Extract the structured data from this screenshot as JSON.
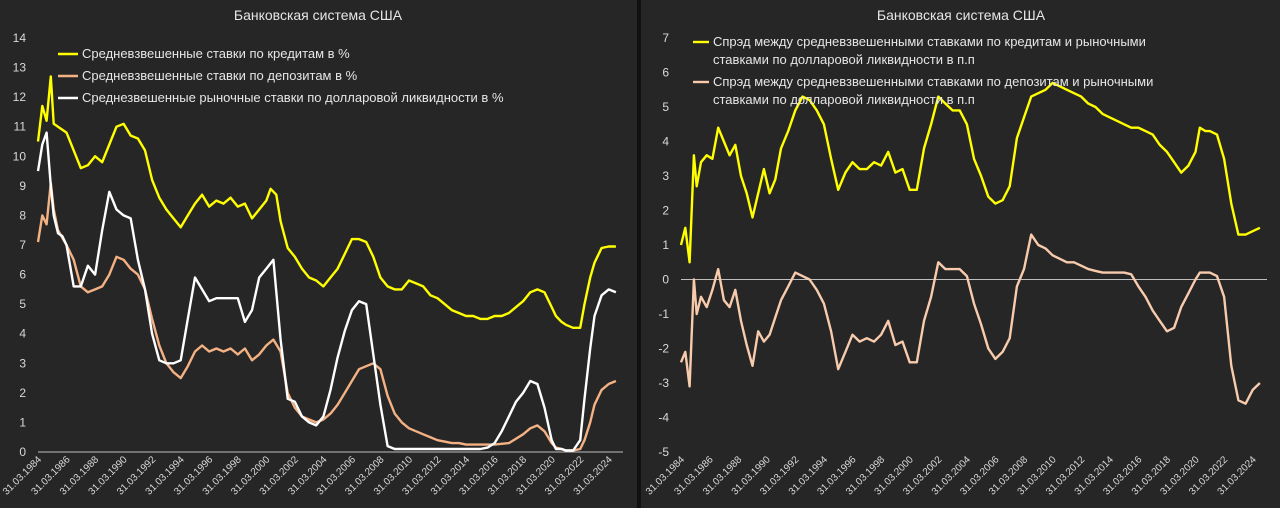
{
  "chart_data": [
    {
      "type": "line",
      "title": "Банковская система США",
      "ylim": [
        0,
        14
      ],
      "yticks": [
        0,
        1,
        2,
        3,
        4,
        5,
        6,
        7,
        8,
        9,
        10,
        11,
        12,
        13,
        14
      ],
      "xlim": [
        1984,
        2025
      ],
      "xtick_labels": [
        "31.03.1984",
        "31.03.1986",
        "31.03.1988",
        "31.03.1990",
        "31.03.1992",
        "31.03.1994",
        "31.03.1996",
        "31.03.1998",
        "31.03.2000",
        "31.03.2002",
        "31.03.2004",
        "31.03.2006",
        "31.03.2008",
        "31.03.2010",
        "31.03.2012",
        "31.03.2014",
        "31.03.2016",
        "31.03.2018",
        "31.03.2020",
        "31.03.2022",
        "31.03.2024"
      ],
      "xtick_years": [
        1984,
        1986,
        1988,
        1990,
        1992,
        1994,
        1996,
        1998,
        2000,
        2002,
        2004,
        2006,
        2008,
        2010,
        2012,
        2014,
        2016,
        2018,
        2020,
        2022,
        2024
      ],
      "legend": "top-left",
      "series": [
        {
          "name": "Средневзвешенные ставки по кредитам в %",
          "color": "#ffff00",
          "x": [
            1984,
            1984.3,
            1984.6,
            1984.9,
            1985.1,
            1985.4,
            1986,
            1986.5,
            1987,
            1987.5,
            1988,
            1988.5,
            1989,
            1989.5,
            1990,
            1990.5,
            1991,
            1991.5,
            1992,
            1992.5,
            1993,
            1993.5,
            1994,
            1994.5,
            1995,
            1995.5,
            1996,
            1996.5,
            1997,
            1997.5,
            1998,
            1998.5,
            1999,
            1999.5,
            2000,
            2000.3,
            2000.7,
            2001,
            2001.5,
            2002,
            2002.5,
            2003,
            2003.5,
            2004,
            2004.5,
            2005,
            2005.5,
            2006,
            2006.5,
            2007,
            2007.5,
            2008,
            2008.5,
            2009,
            2009.5,
            2010,
            2010.5,
            2011,
            2011.5,
            2012,
            2012.5,
            2013,
            2013.5,
            2014,
            2014.5,
            2015,
            2015.5,
            2016,
            2016.5,
            2017,
            2017.5,
            2018,
            2018.5,
            2019,
            2019.5,
            2020,
            2020.3,
            2020.7,
            2021,
            2021.5,
            2022,
            2022.3,
            2022.7,
            2023,
            2023.5,
            2024,
            2024.5
          ],
          "y": [
            10.5,
            11.7,
            11.2,
            12.7,
            11.1,
            11.0,
            10.8,
            10.2,
            9.6,
            9.7,
            10.0,
            9.8,
            10.4,
            11.0,
            11.1,
            10.7,
            10.6,
            10.2,
            9.2,
            8.6,
            8.2,
            7.9,
            7.6,
            8.0,
            8.4,
            8.7,
            8.3,
            8.5,
            8.4,
            8.6,
            8.3,
            8.4,
            7.9,
            8.2,
            8.5,
            8.9,
            8.7,
            7.8,
            6.9,
            6.6,
            6.2,
            5.9,
            5.8,
            5.6,
            5.9,
            6.2,
            6.7,
            7.2,
            7.2,
            7.1,
            6.6,
            5.9,
            5.6,
            5.5,
            5.5,
            5.8,
            5.7,
            5.6,
            5.3,
            5.2,
            5.0,
            4.8,
            4.7,
            4.6,
            4.6,
            4.5,
            4.5,
            4.6,
            4.6,
            4.7,
            4.9,
            5.1,
            5.4,
            5.5,
            5.4,
            4.9,
            4.6,
            4.4,
            4.3,
            4.2,
            4.2,
            5.0,
            5.9,
            6.4,
            6.9,
            6.95,
            6.95
          ]
        },
        {
          "name": "Средневзвешенные ставки по депозитам в %",
          "color": "#f4b183",
          "x": [
            1984,
            1984.3,
            1984.6,
            1984.9,
            1985.1,
            1985.4,
            1986,
            1986.5,
            1987,
            1987.5,
            1988,
            1988.5,
            1989,
            1989.5,
            1990,
            1990.5,
            1991,
            1991.5,
            1992,
            1992.5,
            1993,
            1993.5,
            1994,
            1994.5,
            1995,
            1995.5,
            1996,
            1996.5,
            1997,
            1997.5,
            1998,
            1998.5,
            1999,
            1999.5,
            2000,
            2000.5,
            2001,
            2001.5,
            2002,
            2002.5,
            2003,
            2003.5,
            2004,
            2004.5,
            2005,
            2005.5,
            2006,
            2006.5,
            2007,
            2007.5,
            2008,
            2008.5,
            2009,
            2009.5,
            2010,
            2010.5,
            2011,
            2011.5,
            2012,
            2012.5,
            2013,
            2013.5,
            2014,
            2015,
            2016,
            2017,
            2018,
            2018.5,
            2019,
            2019.5,
            2020,
            2020.3,
            2020.7,
            2021,
            2021.5,
            2022,
            2022.3,
            2022.7,
            2023,
            2023.5,
            2024,
            2024.5
          ],
          "y": [
            7.1,
            8.0,
            7.7,
            9.1,
            8.2,
            7.5,
            7.0,
            6.5,
            5.6,
            5.4,
            5.5,
            5.6,
            6.0,
            6.6,
            6.5,
            6.2,
            6.0,
            5.5,
            4.5,
            3.6,
            3.0,
            2.7,
            2.5,
            2.9,
            3.4,
            3.6,
            3.4,
            3.5,
            3.4,
            3.5,
            3.3,
            3.5,
            3.1,
            3.3,
            3.6,
            3.8,
            3.4,
            2.0,
            1.5,
            1.2,
            1.1,
            1.0,
            1.1,
            1.3,
            1.6,
            2.0,
            2.4,
            2.8,
            2.9,
            3.0,
            2.8,
            1.9,
            1.3,
            1.0,
            0.8,
            0.7,
            0.6,
            0.5,
            0.4,
            0.35,
            0.3,
            0.3,
            0.25,
            0.25,
            0.25,
            0.3,
            0.6,
            0.8,
            0.9,
            0.7,
            0.3,
            0.15,
            0.1,
            0.05,
            0.05,
            0.1,
            0.4,
            1.0,
            1.6,
            2.1,
            2.3,
            2.4
          ]
        },
        {
          "name": "Среднезвешенные рыночные ставки по долларовой ликвидности в %",
          "color": "#ffffff",
          "x": [
            1984,
            1984.3,
            1984.6,
            1984.9,
            1985.1,
            1985.4,
            1985.7,
            1986,
            1986.5,
            1987,
            1987.5,
            1988,
            1988.5,
            1989,
            1989.5,
            1990,
            1990.5,
            1991,
            1991.5,
            1992,
            1992.5,
            1993,
            1993.5,
            1994,
            1994.5,
            1995,
            1995.5,
            1996,
            1996.5,
            1997,
            1997.5,
            1998,
            1998.5,
            1999,
            1999.5,
            2000,
            2000.5,
            2001,
            2001.5,
            2002,
            2002.5,
            2003,
            2003.5,
            2004,
            2004.5,
            2005,
            2005.5,
            2006,
            2006.5,
            2007,
            2007.5,
            2008,
            2008.5,
            2009,
            2009.5,
            2010,
            2011,
            2012,
            2013,
            2014,
            2015,
            2015.5,
            2016,
            2016.5,
            2017,
            2017.5,
            2018,
            2018.5,
            2019,
            2019.5,
            2020,
            2020.3,
            2020.7,
            2021,
            2021.5,
            2022,
            2022.3,
            2022.7,
            2023,
            2023.5,
            2024,
            2024.5
          ],
          "y": [
            9.5,
            10.4,
            10.8,
            9.0,
            8.0,
            7.4,
            7.3,
            7.0,
            5.6,
            5.6,
            6.3,
            6.0,
            7.5,
            8.8,
            8.2,
            8.0,
            7.9,
            6.5,
            5.5,
            4.0,
            3.1,
            3.0,
            3.0,
            3.1,
            4.5,
            5.9,
            5.5,
            5.1,
            5.2,
            5.2,
            5.2,
            5.2,
            4.4,
            4.8,
            5.9,
            6.2,
            6.5,
            3.8,
            1.8,
            1.7,
            1.2,
            1.0,
            0.9,
            1.2,
            2.1,
            3.2,
            4.1,
            4.8,
            5.1,
            5.0,
            3.3,
            1.6,
            0.2,
            0.1,
            0.1,
            0.1,
            0.1,
            0.1,
            0.1,
            0.1,
            0.1,
            0.15,
            0.3,
            0.7,
            1.2,
            1.7,
            2.0,
            2.4,
            2.3,
            1.5,
            0.4,
            0.1,
            0.1,
            0.05,
            0.05,
            0.4,
            1.8,
            3.5,
            4.6,
            5.3,
            5.5,
            5.4
          ]
        }
      ]
    },
    {
      "type": "line",
      "title": "Банковская система США",
      "ylim": [
        -5,
        7
      ],
      "yticks": [
        -5,
        -4,
        -3,
        -2,
        -1,
        0,
        1,
        2,
        3,
        4,
        5,
        6,
        7
      ],
      "xlim": [
        1984,
        2025
      ],
      "xtick_labels": [
        "31.03.1984",
        "31.03.1986",
        "31.03.1988",
        "31.03.1990",
        "31.03.1992",
        "31.03.1994",
        "31.03.1996",
        "31.03.1998",
        "31.03.2000",
        "31.03.2002",
        "31.03.2004",
        "31.03.2006",
        "31.03.2008",
        "31.03.2010",
        "31.03.2012",
        "31.03.2014",
        "31.03.2016",
        "31.03.2018",
        "31.03.2020",
        "31.03.2022",
        "31.03.2024"
      ],
      "xtick_years": [
        1984,
        1986,
        1988,
        1990,
        1992,
        1994,
        1996,
        1998,
        2000,
        2002,
        2004,
        2006,
        2008,
        2010,
        2012,
        2014,
        2016,
        2018,
        2020,
        2022,
        2024
      ],
      "legend": "top-left",
      "series": [
        {
          "name": "Спрэд между средневзвешенными ставками по кредитам и рыночными ставками по долларовой ликвидности в п.п",
          "color": "#ffff00",
          "x": [
            1984,
            1984.3,
            1984.6,
            1984.9,
            1985.1,
            1985.4,
            1985.8,
            1986.2,
            1986.6,
            1987,
            1987.4,
            1987.8,
            1988.2,
            1988.6,
            1989,
            1989.4,
            1989.8,
            1990.2,
            1990.6,
            1991,
            1991.5,
            1992,
            1992.5,
            1993,
            1993.5,
            1994,
            1994.5,
            1995,
            1995.5,
            1996,
            1996.5,
            1997,
            1997.5,
            1998,
            1998.5,
            1999,
            1999.5,
            2000,
            2000.5,
            2001,
            2001.5,
            2002,
            2002.5,
            2003,
            2003.5,
            2004,
            2004.5,
            2005,
            2005.5,
            2006,
            2006.5,
            2007,
            2007.5,
            2008,
            2008.5,
            2009,
            2009.5,
            2010,
            2010.5,
            2011,
            2011.5,
            2012,
            2012.5,
            2013,
            2013.5,
            2014,
            2014.5,
            2015,
            2015.5,
            2016,
            2016.5,
            2017,
            2017.5,
            2018,
            2018.5,
            2019,
            2019.5,
            2020,
            2020.3,
            2020.7,
            2021,
            2021.5,
            2022,
            2022.5,
            2023,
            2023.5,
            2024,
            2024.5
          ],
          "y": [
            1.0,
            1.5,
            0.5,
            3.6,
            2.7,
            3.4,
            3.6,
            3.5,
            4.4,
            4.0,
            3.6,
            3.9,
            3.0,
            2.5,
            1.8,
            2.5,
            3.2,
            2.5,
            2.9,
            3.8,
            4.3,
            4.9,
            5.3,
            5.2,
            4.9,
            4.5,
            3.5,
            2.6,
            3.1,
            3.4,
            3.2,
            3.2,
            3.4,
            3.3,
            3.7,
            3.1,
            3.2,
            2.6,
            2.6,
            3.8,
            4.5,
            5.3,
            5.1,
            4.9,
            4.9,
            4.5,
            3.5,
            3.0,
            2.4,
            2.2,
            2.3,
            2.7,
            4.1,
            4.7,
            5.3,
            5.4,
            5.5,
            5.7,
            5.6,
            5.5,
            5.4,
            5.3,
            5.1,
            5.0,
            4.8,
            4.7,
            4.6,
            4.5,
            4.4,
            4.4,
            4.3,
            4.2,
            3.9,
            3.7,
            3.4,
            3.1,
            3.3,
            3.7,
            4.4,
            4.3,
            4.3,
            4.2,
            3.5,
            2.2,
            1.3,
            1.3,
            1.4,
            1.5
          ]
        },
        {
          "name": "Спрэд между средневзвешенными ставками по депозитам и рыночными ставками по долларовой ликвидности в п.п",
          "color": "#f8cbad",
          "x": [
            1984,
            1984.3,
            1984.6,
            1984.9,
            1985.1,
            1985.4,
            1985.8,
            1986.2,
            1986.6,
            1987,
            1987.4,
            1987.8,
            1988.2,
            1988.6,
            1989,
            1989.4,
            1989.8,
            1990.2,
            1990.6,
            1991,
            1991.5,
            1992,
            1992.5,
            1993,
            1993.5,
            1994,
            1994.5,
            1995,
            1995.5,
            1996,
            1996.5,
            1997,
            1997.5,
            1998,
            1998.5,
            1999,
            1999.5,
            2000,
            2000.5,
            2001,
            2001.5,
            2002,
            2002.5,
            2003,
            2003.5,
            2004,
            2004.5,
            2005,
            2005.5,
            2006,
            2006.5,
            2007,
            2007.5,
            2008,
            2008.5,
            2009,
            2009.5,
            2010,
            2010.5,
            2011,
            2011.5,
            2012,
            2012.5,
            2013,
            2013.5,
            2014,
            2014.5,
            2015,
            2015.5,
            2016,
            2016.5,
            2017,
            2017.5,
            2018,
            2018.5,
            2019,
            2019.5,
            2020,
            2020.3,
            2020.7,
            2021,
            2021.5,
            2022,
            2022.5,
            2023,
            2023.5,
            2024,
            2024.5
          ],
          "y": [
            -2.4,
            -2.1,
            -3.1,
            0.0,
            -1.0,
            -0.5,
            -0.8,
            -0.3,
            0.3,
            -0.6,
            -0.8,
            -0.3,
            -1.2,
            -1.9,
            -2.5,
            -1.5,
            -1.8,
            -1.6,
            -1.1,
            -0.6,
            -0.2,
            0.2,
            0.1,
            0.0,
            -0.3,
            -0.7,
            -1.5,
            -2.6,
            -2.1,
            -1.6,
            -1.8,
            -1.7,
            -1.8,
            -1.6,
            -1.2,
            -1.9,
            -1.8,
            -2.4,
            -2.4,
            -1.2,
            -0.5,
            0.5,
            0.3,
            0.3,
            0.3,
            0.1,
            -0.7,
            -1.3,
            -2.0,
            -2.3,
            -2.1,
            -1.7,
            -0.2,
            0.3,
            1.3,
            1.0,
            0.9,
            0.7,
            0.6,
            0.5,
            0.5,
            0.4,
            0.3,
            0.25,
            0.2,
            0.2,
            0.2,
            0.2,
            0.15,
            -0.2,
            -0.5,
            -0.9,
            -1.2,
            -1.5,
            -1.4,
            -0.8,
            -0.4,
            0.0,
            0.2,
            0.2,
            0.2,
            0.1,
            -0.5,
            -2.5,
            -3.5,
            -3.6,
            -3.2,
            -3.0
          ]
        }
      ]
    }
  ]
}
